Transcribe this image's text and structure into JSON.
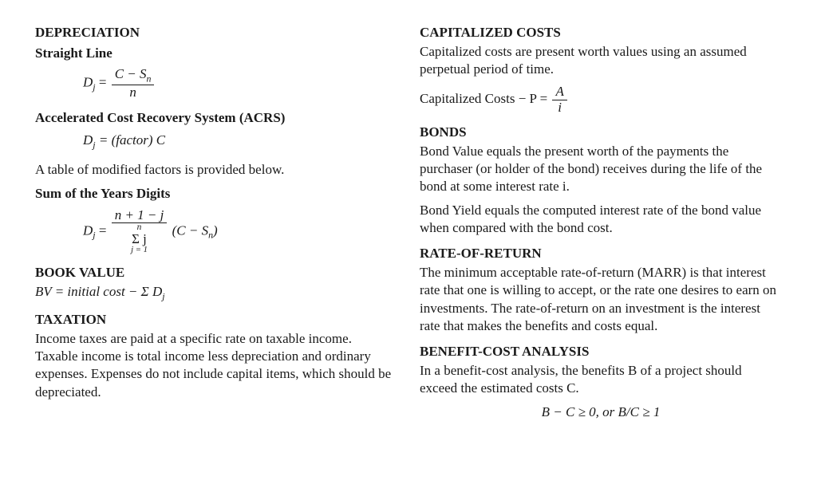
{
  "left": {
    "depreciation": {
      "title": "DEPRECIATION",
      "straight_line": {
        "label": "Straight Line",
        "formula": {
          "lhs": "D",
          "lhs_sub": "j",
          "equals": " = ",
          "num": "C − S",
          "num_sub": "n",
          "den": "n"
        }
      },
      "acrs": {
        "label": "Accelerated Cost Recovery System (ACRS)",
        "formula": "D",
        "formula_sub": "j",
        "formula_rest": " = (factor) C",
        "note": "A table of modified factors is provided below."
      },
      "syd": {
        "label": "Sum of the Years Digits",
        "formula": {
          "lhs": "D",
          "lhs_sub": "j",
          "equals": " = ",
          "num": "n + 1 − j",
          "den_top": "n",
          "den_mid": "Σ j",
          "den_bot": "j = 1",
          "tail": " (C − S",
          "tail_sub": "n",
          "tail_close": ")"
        }
      }
    },
    "book_value": {
      "title": "BOOK VALUE",
      "formula": "BV = initial cost − Σ D",
      "formula_sub": "j"
    },
    "taxation": {
      "title": "TAXATION",
      "text": "Income taxes are paid at a specific rate on taxable income. Taxable income is total income less depreciation and ordinary expenses. Expenses do not include capital items, which should be depreciated."
    }
  },
  "right": {
    "cap_costs": {
      "title": "CAPITALIZED COSTS",
      "text": "Capitalized costs are present worth values using an assumed perpetual period of time.",
      "formula": {
        "lead": "Capitalized Costs − P = ",
        "num": "A",
        "den": "i"
      }
    },
    "bonds": {
      "title": "BONDS",
      "p1": "Bond Value equals the present worth of the payments the purchaser (or holder of the bond) receives during the life of the bond at some interest rate i.",
      "p2": "Bond Yield equals the computed interest rate of the bond value when compared with the bond cost."
    },
    "ror": {
      "title": "RATE-OF-RETURN",
      "text": "The minimum acceptable rate-of-return (MARR) is that interest rate that one is willing to accept, or the rate one desires to earn on investments. The rate-of-return on an investment is the interest rate that makes the benefits and costs equal."
    },
    "bca": {
      "title": "BENEFIT-COST ANALYSIS",
      "text": "In a benefit-cost analysis, the benefits B of a project should exceed the estimated costs C.",
      "formula": "B − C ≥ 0, or B/C ≥ 1"
    }
  }
}
